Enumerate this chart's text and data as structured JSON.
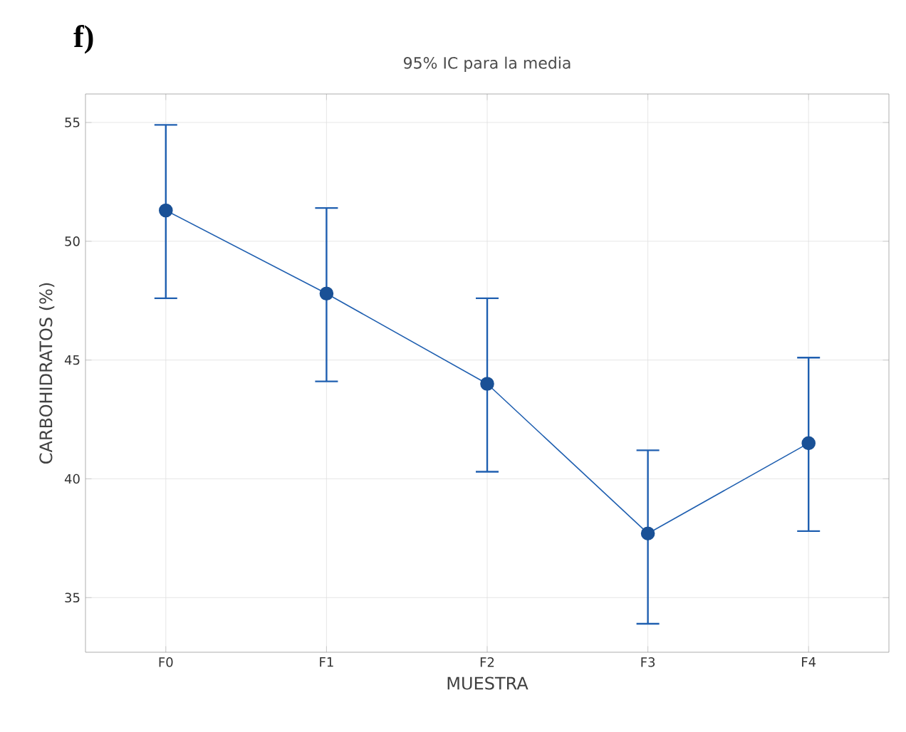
{
  "chart_data": {
    "type": "line",
    "title": "95% IC para la media",
    "xlabel": "MUESTRA",
    "ylabel": "CARBOHIDRATOS (%)",
    "annotations": [
      "f)"
    ],
    "categories": [
      "F0",
      "F1",
      "F2",
      "F3",
      "F4"
    ],
    "values": [
      51.3,
      47.8,
      44.0,
      37.7,
      41.5
    ],
    "errors": [
      [
        47.6,
        54.9
      ],
      [
        44.1,
        51.4
      ],
      [
        40.3,
        47.6
      ],
      [
        33.9,
        41.2
      ],
      [
        37.8,
        45.1
      ]
    ],
    "color": "#1f5fb0",
    "marker": "circle",
    "line_style": "solid",
    "grid": true,
    "ylim": [
      32.7,
      56.2
    ],
    "yticks": [
      35,
      40,
      45,
      50,
      55
    ]
  }
}
